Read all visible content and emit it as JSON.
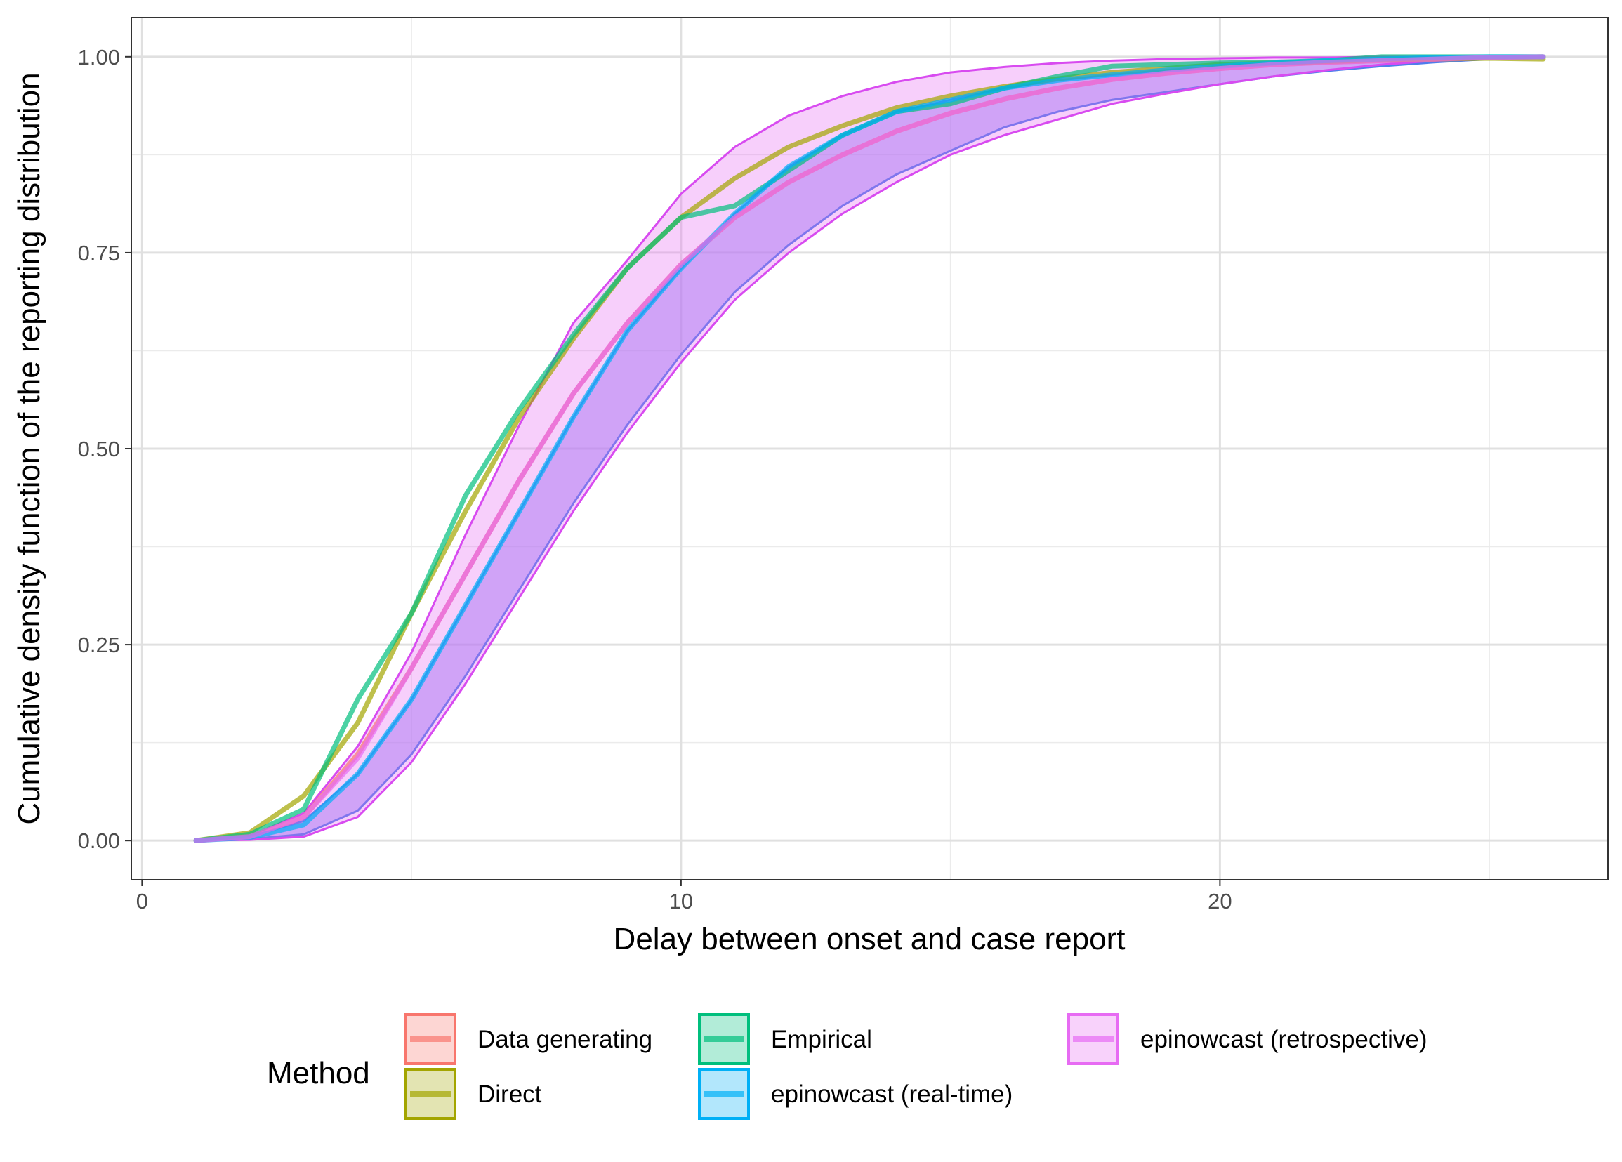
{
  "chart_data": {
    "type": "line",
    "xlabel": "Delay between onset and case report",
    "ylabel": "Cumulative density function of the reporting distribution",
    "xlim": [
      -0.2,
      27.2
    ],
    "ylim": [
      -0.05,
      1.05
    ],
    "x_ticks": [
      0,
      10,
      20
    ],
    "x_tick_labels": [
      "0",
      "10",
      "20"
    ],
    "y_ticks": [
      0,
      0.25,
      0.5,
      0.75,
      1.0
    ],
    "y_tick_labels": [
      "0.00",
      "0.25",
      "0.50",
      "0.75",
      "1.00"
    ],
    "grid": true,
    "legend": {
      "title": "Method",
      "position": "bottom",
      "items": [
        {
          "label": "Data generating",
          "color": "#F8766D"
        },
        {
          "label": "Direct",
          "color": "#A3A500"
        },
        {
          "label": "Empirical",
          "color": "#00BF7D"
        },
        {
          "label": "epinowcast (real-time)",
          "color": "#00B0F6"
        },
        {
          "label": "epinowcast (retrospective)",
          "color": "#E76BF3"
        }
      ]
    },
    "ribbons": [
      {
        "name": "epinowcast (real-time)",
        "fill": "#8D80F3",
        "border": "#4F7DEB",
        "opacity": 0.5,
        "x": [
          1,
          2,
          3,
          4,
          5,
          6,
          7,
          8,
          9,
          10,
          11,
          12,
          13,
          14,
          15,
          16,
          17,
          18,
          19,
          20,
          21,
          22,
          23,
          24,
          25,
          26
        ],
        "lower": [
          0.0,
          0.002,
          0.008,
          0.038,
          0.11,
          0.21,
          0.32,
          0.43,
          0.53,
          0.62,
          0.7,
          0.76,
          0.81,
          0.85,
          0.88,
          0.91,
          0.93,
          0.945,
          0.955,
          0.965,
          0.975,
          0.982,
          0.988,
          0.993,
          0.997,
          1.0
        ],
        "upper": [
          0.0,
          0.005,
          0.025,
          0.085,
          0.18,
          0.3,
          0.42,
          0.54,
          0.65,
          0.73,
          0.8,
          0.86,
          0.9,
          0.93,
          0.945,
          0.96,
          0.97,
          0.977,
          0.983,
          0.988,
          0.992,
          0.995,
          0.997,
          0.999,
          1.0,
          1.0
        ]
      },
      {
        "name": "epinowcast (retrospective)",
        "fill": "#E76BF3",
        "border": "#D84BF0",
        "opacity": 0.32,
        "x": [
          1,
          2,
          3,
          4,
          5,
          6,
          7,
          8,
          9,
          10,
          11,
          12,
          13,
          14,
          15,
          16,
          17,
          18,
          19,
          20,
          21,
          22,
          23,
          24,
          25,
          26
        ],
        "lower": [
          0.0,
          0.001,
          0.005,
          0.03,
          0.1,
          0.2,
          0.31,
          0.42,
          0.52,
          0.61,
          0.69,
          0.75,
          0.8,
          0.84,
          0.875,
          0.9,
          0.92,
          0.94,
          0.953,
          0.965,
          0.975,
          0.983,
          0.99,
          0.995,
          0.998,
          1.0
        ],
        "upper": [
          0.0,
          0.006,
          0.035,
          0.12,
          0.24,
          0.39,
          0.53,
          0.66,
          0.74,
          0.825,
          0.885,
          0.925,
          0.95,
          0.968,
          0.98,
          0.987,
          0.992,
          0.995,
          0.997,
          0.998,
          0.999,
          0.999,
          1.0,
          1.0,
          1.0,
          1.0
        ]
      }
    ],
    "series": [
      {
        "name": "Data generating",
        "color": "#F8766D",
        "x": [
          1,
          2,
          3,
          4,
          5,
          6,
          7,
          8,
          9,
          10,
          11,
          12,
          13,
          14,
          15,
          16,
          17,
          18,
          19,
          20,
          21,
          22,
          23,
          24,
          25,
          26
        ],
        "y": [
          0.0,
          0.005,
          0.03,
          0.11,
          0.22,
          0.34,
          0.46,
          0.57,
          0.66,
          0.735,
          0.795,
          0.84,
          0.875,
          0.905,
          0.928,
          0.946,
          0.96,
          0.971,
          0.979,
          0.985,
          0.99,
          0.993,
          0.995,
          0.997,
          0.999,
          1.0
        ]
      },
      {
        "name": "Direct",
        "color": "#A3A500",
        "x": [
          1,
          2,
          3,
          4,
          5,
          6,
          7,
          8,
          9,
          10,
          11,
          12,
          13,
          14,
          15,
          16,
          17,
          18,
          19,
          20,
          21,
          22,
          23,
          24,
          25,
          26
        ],
        "y": [
          0.0,
          0.01,
          0.057,
          0.15,
          0.29,
          0.42,
          0.54,
          0.64,
          0.73,
          0.795,
          0.845,
          0.885,
          0.912,
          0.935,
          0.95,
          0.962,
          0.972,
          0.98,
          0.985,
          0.99,
          0.992,
          0.994,
          0.996,
          0.997,
          0.998,
          0.997
        ]
      },
      {
        "name": "Empirical",
        "color": "#00BF7D",
        "x": [
          1,
          2,
          3,
          4,
          5,
          6,
          7,
          8,
          9,
          10,
          11,
          12,
          13,
          14,
          15,
          16,
          17,
          18,
          19,
          20,
          21,
          22,
          23,
          24,
          25,
          26
        ],
        "y": [
          0.0,
          0.008,
          0.04,
          0.18,
          0.29,
          0.44,
          0.55,
          0.645,
          0.73,
          0.795,
          0.81,
          0.855,
          0.9,
          0.93,
          0.94,
          0.96,
          0.975,
          0.988,
          0.99,
          0.992,
          0.993,
          0.995,
          1.0,
          1.0,
          1.0,
          1.0
        ]
      },
      {
        "name": "epinowcast (real-time)",
        "color": "#00B0F6",
        "x": [
          1,
          2,
          3,
          4,
          5,
          6,
          7,
          8,
          9,
          10,
          11,
          12,
          13,
          14,
          15,
          16,
          17,
          18,
          19,
          20,
          21,
          22,
          23,
          24,
          25,
          26
        ],
        "y": [
          0.0,
          0.004,
          0.02,
          0.085,
          0.18,
          0.3,
          0.42,
          0.54,
          0.65,
          0.73,
          0.8,
          0.86,
          0.9,
          0.93,
          0.945,
          0.96,
          0.97,
          0.977,
          0.983,
          0.988,
          0.992,
          0.995,
          0.997,
          0.999,
          1.0,
          1.0
        ]
      },
      {
        "name": "epinowcast (retrospective)",
        "color": "#E76BF3",
        "x": [
          1,
          2,
          3,
          4,
          5,
          6,
          7,
          8,
          9,
          10,
          11,
          12,
          13,
          14,
          15,
          16,
          17,
          18,
          19,
          20,
          21,
          22,
          23,
          24,
          25,
          26
        ],
        "y": [
          0.0,
          0.005,
          0.03,
          0.105,
          0.22,
          0.34,
          0.46,
          0.57,
          0.66,
          0.735,
          0.795,
          0.84,
          0.875,
          0.905,
          0.928,
          0.946,
          0.96,
          0.971,
          0.979,
          0.985,
          0.99,
          0.993,
          0.995,
          0.997,
          0.999,
          1.0
        ]
      }
    ]
  }
}
